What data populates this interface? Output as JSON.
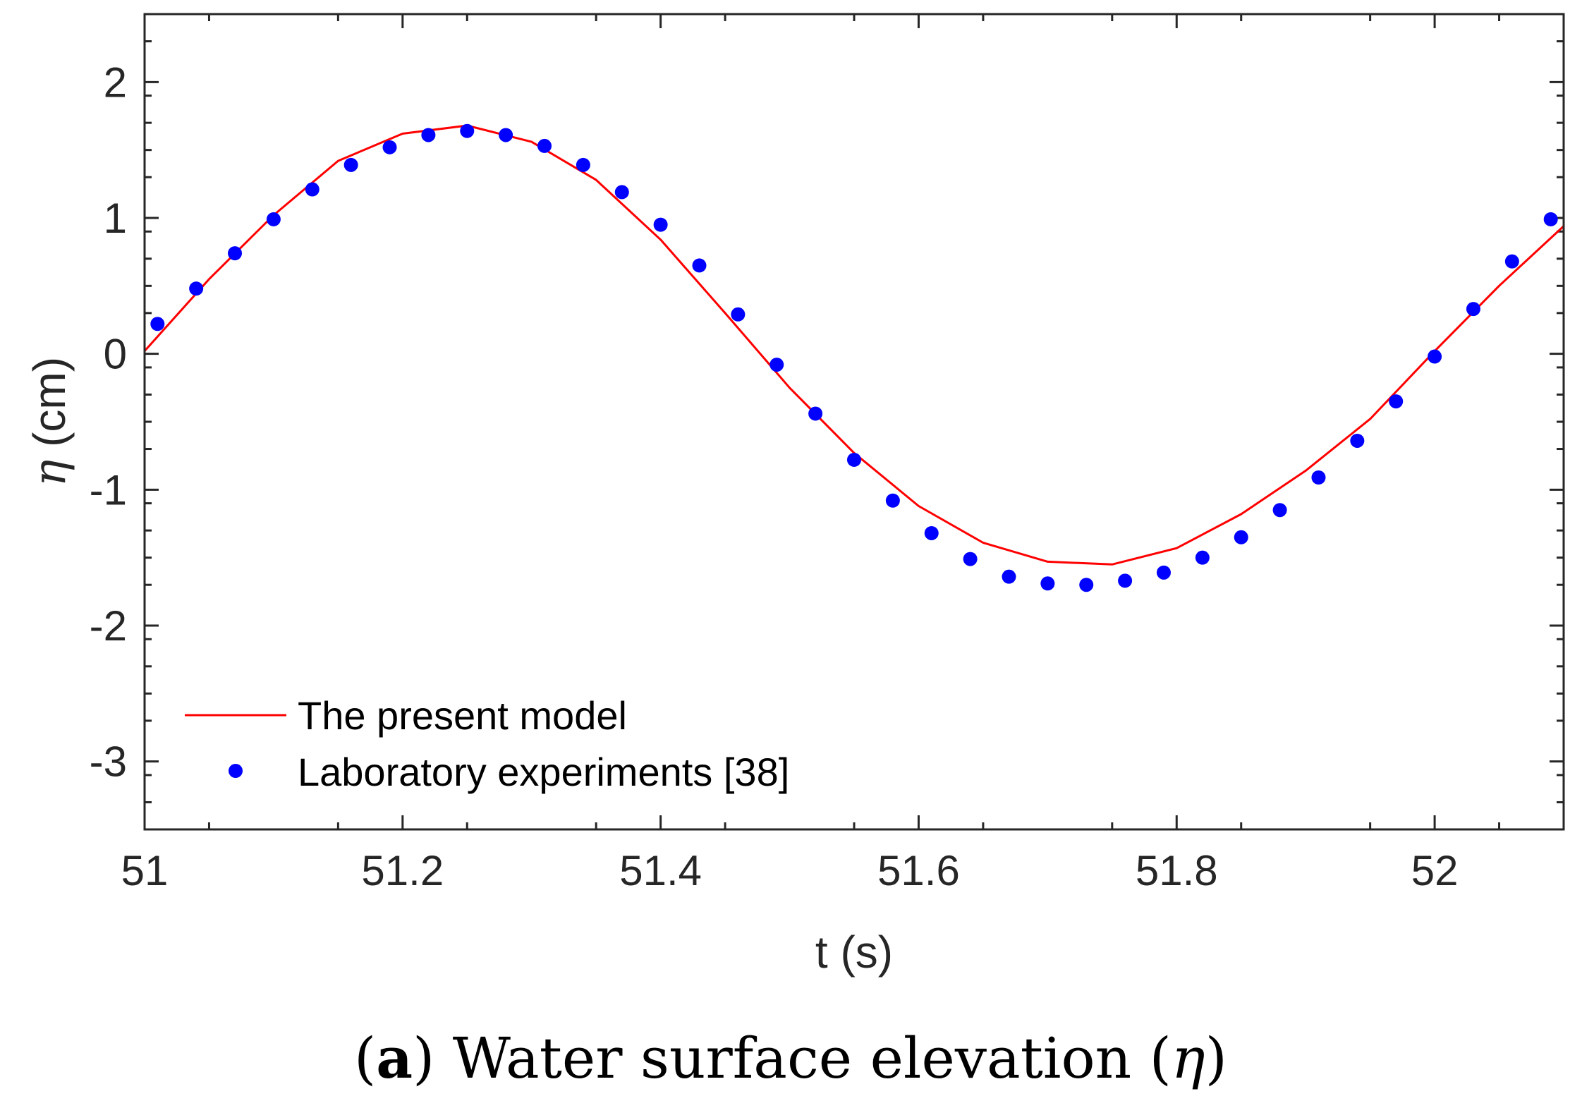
{
  "chart_data": {
    "type": "line",
    "xlabel": "t (s)",
    "ylabel": "η (cm)",
    "ylabel_symbol": "η",
    "ylabel_unit": " (cm)",
    "xlim": [
      51.0,
      52.1
    ],
    "ylim": [
      -3.5,
      2.5
    ],
    "xticks": [
      51.0,
      51.2,
      51.4,
      51.6,
      51.8,
      52.0
    ],
    "xtick_labels": [
      "51",
      "51.2",
      "51.4",
      "51.6",
      "51.8",
      "52"
    ],
    "yticks": [
      2,
      1,
      0,
      -1,
      -2,
      -3
    ],
    "ytick_labels": [
      "2",
      "1",
      "0",
      "-1",
      "-2",
      "-3"
    ],
    "grid": false,
    "legend_position": "bottom-left",
    "series": [
      {
        "name": "The present model",
        "style": "line",
        "color": "#ff0000",
        "x": [
          51.0,
          51.05,
          51.1,
          51.15,
          51.2,
          51.25,
          51.3,
          51.35,
          51.4,
          51.45,
          51.5,
          51.55,
          51.6,
          51.65,
          51.7,
          51.75,
          51.8,
          51.85,
          51.9,
          51.95,
          52.0,
          52.05,
          52.1
        ],
        "y": [
          0.02,
          0.55,
          1.02,
          1.42,
          1.62,
          1.68,
          1.56,
          1.28,
          0.84,
          0.3,
          -0.25,
          -0.73,
          -1.12,
          -1.39,
          -1.53,
          -1.55,
          -1.43,
          -1.18,
          -0.86,
          -0.48,
          0.02,
          0.5,
          0.94
        ]
      },
      {
        "name": "Laboratory experiments [38]",
        "style": "scatter",
        "color": "#0000ff",
        "x": [
          51.01,
          51.04,
          51.07,
          51.1,
          51.13,
          51.16,
          51.19,
          51.22,
          51.25,
          51.28,
          51.31,
          51.34,
          51.37,
          51.4,
          51.43,
          51.46,
          51.49,
          51.52,
          51.55,
          51.58,
          51.61,
          51.64,
          51.67,
          51.7,
          51.73,
          51.76,
          51.79,
          51.82,
          51.85,
          51.88,
          51.91,
          51.94,
          51.97,
          52.0,
          52.03,
          52.06,
          52.09
        ],
        "y": [
          0.22,
          0.48,
          0.74,
          0.99,
          1.21,
          1.39,
          1.52,
          1.61,
          1.64,
          1.61,
          1.53,
          1.39,
          1.19,
          0.95,
          0.65,
          0.29,
          -0.08,
          -0.44,
          -0.78,
          -1.08,
          -1.32,
          -1.51,
          -1.64,
          -1.69,
          -1.7,
          -1.67,
          -1.61,
          -1.5,
          -1.35,
          -1.15,
          -0.91,
          -0.64,
          -0.35,
          -0.02,
          0.33,
          0.68,
          0.99
        ]
      }
    ],
    "caption": {
      "label": "a",
      "text": "Water surface elevation (",
      "symbol": "η",
      "close": ")"
    }
  }
}
